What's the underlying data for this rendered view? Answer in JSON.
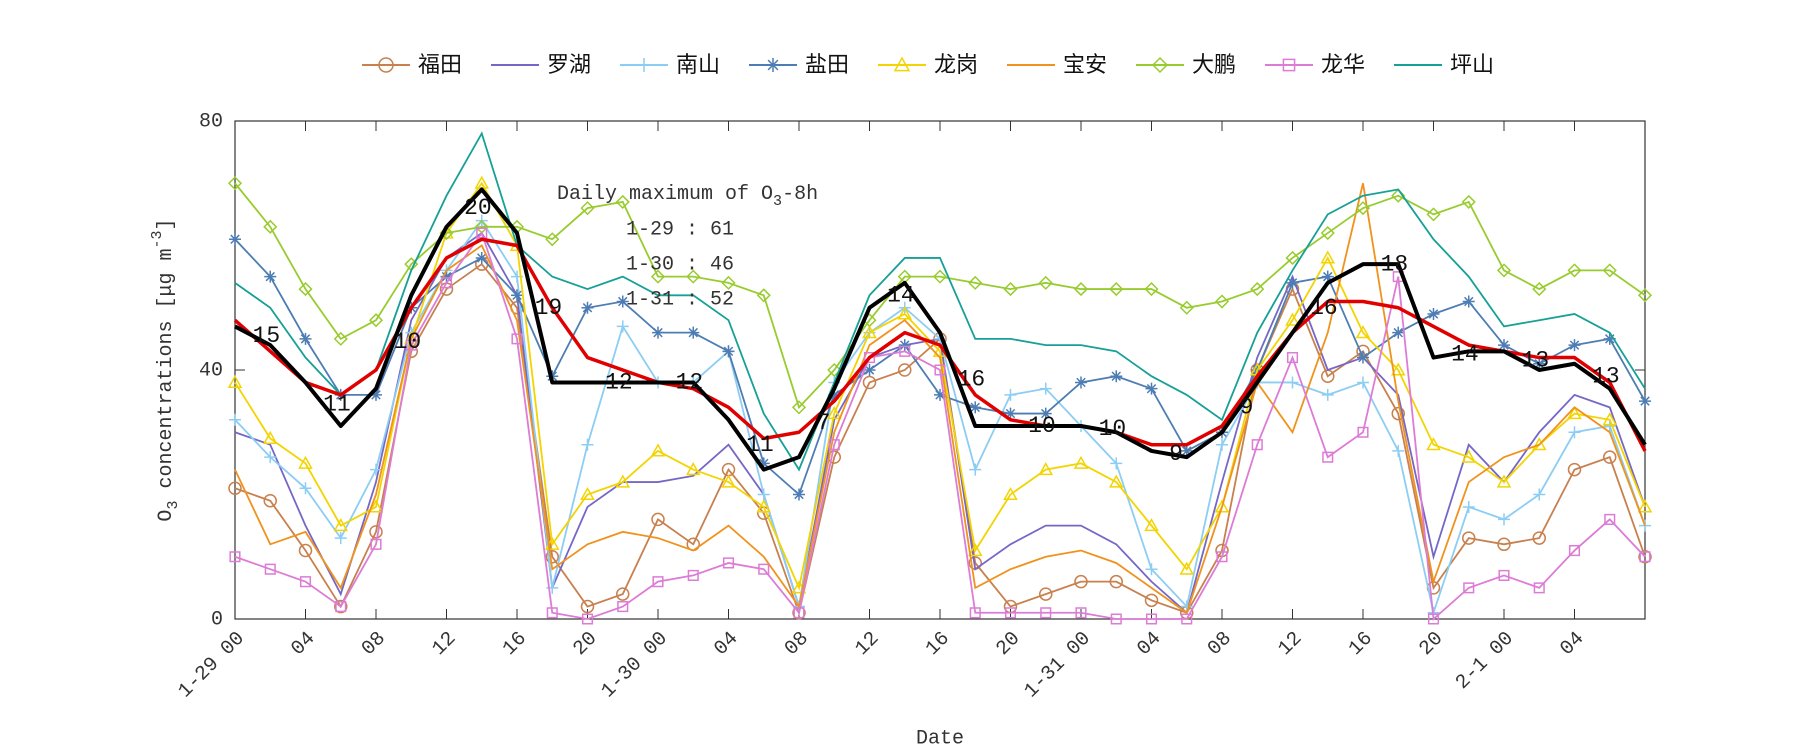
{
  "chart_data": {
    "type": "line",
    "ylabel": [
      "O",
      "3",
      " concentrations [",
      "μg m",
      "-3",
      "]"
    ],
    "xlabel": "Date",
    "annotation": {
      "title": [
        "Daily maximum of O",
        "3",
        "-8h"
      ],
      "lines": [
        "1-29 : 61",
        "1-30 : 46",
        "1-31 : 52"
      ]
    },
    "xlim": [
      0,
      80
    ],
    "ylim": [
      0,
      80
    ],
    "yticks": [
      0,
      40,
      80
    ],
    "xticks": [
      {
        "value": 0,
        "label": "1-29 00"
      },
      {
        "value": 4,
        "label": "04"
      },
      {
        "value": 8,
        "label": "08"
      },
      {
        "value": 12,
        "label": "12"
      },
      {
        "value": 16,
        "label": "16"
      },
      {
        "value": 20,
        "label": "20"
      },
      {
        "value": 24,
        "label": "1-30 00"
      },
      {
        "value": 28,
        "label": "04"
      },
      {
        "value": 32,
        "label": "08"
      },
      {
        "value": 36,
        "label": "12"
      },
      {
        "value": 40,
        "label": "16"
      },
      {
        "value": 44,
        "label": "20"
      },
      {
        "value": 48,
        "label": "1-31 00"
      },
      {
        "value": 52,
        "label": "04"
      },
      {
        "value": 56,
        "label": "08"
      },
      {
        "value": 60,
        "label": "12"
      },
      {
        "value": 64,
        "label": "16"
      },
      {
        "value": 68,
        "label": "20"
      },
      {
        "value": 72,
        "label": "2-1 00"
      },
      {
        "value": 76,
        "label": "04"
      }
    ],
    "x": [
      0,
      2,
      4,
      6,
      8,
      10,
      12,
      14,
      16,
      18,
      20,
      22,
      24,
      26,
      28,
      30,
      32,
      34,
      36,
      38,
      40,
      42,
      44,
      46,
      48,
      50,
      52,
      54,
      56,
      58,
      60,
      62,
      64,
      66,
      68,
      70,
      72,
      74,
      76,
      78,
      80
    ],
    "series": [
      {
        "name": "福田",
        "color": "#c8804e",
        "marker": "circle",
        "values": [
          21,
          19,
          11,
          2,
          14,
          43,
          53,
          57,
          50,
          10,
          2,
          4,
          16,
          12,
          24,
          17,
          1,
          26,
          38,
          40,
          45,
          9,
          2,
          4,
          6,
          6,
          3,
          1,
          11,
          40,
          53,
          39,
          43,
          33,
          5,
          13,
          12,
          13,
          24,
          26,
          10
        ]
      },
      {
        "name": "罗湖",
        "color": "#7567c6",
        "marker": "none",
        "values": [
          30,
          28,
          15,
          4,
          22,
          48,
          58,
          62,
          52,
          5,
          18,
          22,
          22,
          23,
          28,
          20,
          2,
          32,
          42,
          44,
          45,
          8,
          12,
          15,
          15,
          12,
          6,
          1,
          22,
          42,
          55,
          40,
          42,
          36,
          10,
          28,
          22,
          30,
          36,
          34,
          18
        ]
      },
      {
        "name": "南山",
        "color": "#8ccdf3",
        "marker": "plus",
        "values": [
          32,
          26,
          21,
          13,
          24,
          46,
          56,
          64,
          55,
          5,
          28,
          47,
          38,
          38,
          43,
          20,
          2,
          38,
          46,
          50,
          45,
          24,
          36,
          37,
          31,
          25,
          8,
          2,
          28,
          38,
          38,
          36,
          38,
          27,
          1,
          18,
          16,
          20,
          30,
          31,
          15
        ]
      },
      {
        "name": "盐田",
        "color": "#4d7db3",
        "marker": "star",
        "values": [
          61,
          55,
          45,
          36,
          36,
          50,
          55,
          58,
          52,
          39,
          50,
          51,
          46,
          46,
          43,
          25,
          20,
          36,
          40,
          44,
          36,
          34,
          33,
          33,
          38,
          39,
          37,
          27,
          30,
          40,
          54,
          55,
          42,
          46,
          49,
          51,
          44,
          41,
          44,
          45,
          35
        ]
      },
      {
        "name": "龙岗",
        "color": "#f3d400",
        "marker": "triangle",
        "values": [
          38,
          29,
          25,
          15,
          18,
          45,
          62,
          70,
          60,
          12,
          20,
          22,
          27,
          24,
          22,
          18,
          5,
          33,
          46,
          49,
          43,
          11,
          20,
          24,
          25,
          22,
          15,
          8,
          18,
          40,
          48,
          58,
          46,
          40,
          28,
          26,
          22,
          28,
          33,
          32,
          18
        ]
      },
      {
        "name": "宝安",
        "color": "#f0921c",
        "marker": "none",
        "values": [
          24,
          12,
          14,
          5,
          20,
          45,
          56,
          60,
          48,
          8,
          12,
          14,
          13,
          11,
          15,
          10,
          2,
          30,
          44,
          48,
          42,
          5,
          8,
          10,
          11,
          9,
          5,
          1,
          18,
          38,
          30,
          46,
          70,
          35,
          6,
          22,
          26,
          28,
          34,
          30,
          15
        ]
      },
      {
        "name": "大鹏",
        "color": "#98cc2e",
        "marker": "diamond",
        "values": [
          70,
          63,
          53,
          45,
          48,
          57,
          62,
          63,
          63,
          61,
          66,
          67,
          55,
          55,
          54,
          52,
          34,
          40,
          48,
          55,
          55,
          54,
          53,
          54,
          53,
          53,
          53,
          50,
          51,
          53,
          58,
          62,
          66,
          68,
          65,
          67,
          56,
          53,
          56,
          56,
          52
        ]
      },
      {
        "name": "龙华",
        "color": "#dc7cd6",
        "marker": "square",
        "values": [
          10,
          8,
          6,
          2,
          12,
          44,
          54,
          62,
          45,
          1,
          0,
          2,
          6,
          7,
          9,
          8,
          1,
          28,
          42,
          43,
          40,
          1,
          1,
          1,
          1,
          0,
          0,
          0,
          10,
          28,
          42,
          26,
          30,
          55,
          0,
          5,
          7,
          5,
          11,
          16,
          10
        ]
      },
      {
        "name": "坪山",
        "color": "#17a096",
        "marker": "none",
        "values": [
          54,
          50,
          42,
          36,
          40,
          56,
          68,
          78,
          60,
          55,
          53,
          55,
          52,
          52,
          48,
          33,
          24,
          38,
          52,
          58,
          58,
          45,
          45,
          44,
          44,
          43,
          39,
          36,
          32,
          46,
          56,
          65,
          68,
          69,
          61,
          55,
          47,
          48,
          49,
          46,
          37
        ]
      }
    ],
    "extra_lines": [
      {
        "color": "#e00000",
        "values": [
          48,
          43,
          38,
          36,
          40,
          50,
          58,
          61,
          60,
          50,
          42,
          40,
          38,
          37,
          34,
          29,
          30,
          35,
          42,
          46,
          44,
          36,
          32,
          31,
          31,
          30,
          28,
          28,
          31,
          39,
          46,
          51,
          51,
          50,
          47,
          44,
          43,
          42,
          42,
          38,
          27
        ]
      },
      {
        "color": "#000000",
        "values": [
          47,
          44,
          38,
          31,
          37,
          52,
          63,
          69,
          62,
          38,
          38,
          38,
          38,
          38,
          32,
          24,
          26,
          37,
          50,
          54,
          46,
          31,
          31,
          31,
          31,
          30,
          27,
          26,
          30,
          38,
          46,
          54,
          57,
          57,
          42,
          43,
          43,
          40,
          41,
          37,
          28
        ]
      }
    ],
    "point_labels": [
      {
        "x": 1,
        "label": "15"
      },
      {
        "x": 5,
        "label": "11"
      },
      {
        "x": 9,
        "label": "10"
      },
      {
        "x": 13,
        "label": "20"
      },
      {
        "x": 17,
        "label": "19"
      },
      {
        "x": 21,
        "label": "12"
      },
      {
        "x": 25,
        "label": "12"
      },
      {
        "x": 29,
        "label": "11"
      },
      {
        "x": 33,
        "label": "7"
      },
      {
        "x": 37,
        "label": "14"
      },
      {
        "x": 41,
        "label": "16"
      },
      {
        "x": 45,
        "label": "10"
      },
      {
        "x": 49,
        "label": "10"
      },
      {
        "x": 53,
        "label": "9"
      },
      {
        "x": 57,
        "label": "9"
      },
      {
        "x": 61,
        "label": "16"
      },
      {
        "x": 65,
        "label": "18"
      },
      {
        "x": 69,
        "label": "14"
      },
      {
        "x": 73,
        "label": "13"
      },
      {
        "x": 77,
        "label": "13"
      }
    ]
  }
}
